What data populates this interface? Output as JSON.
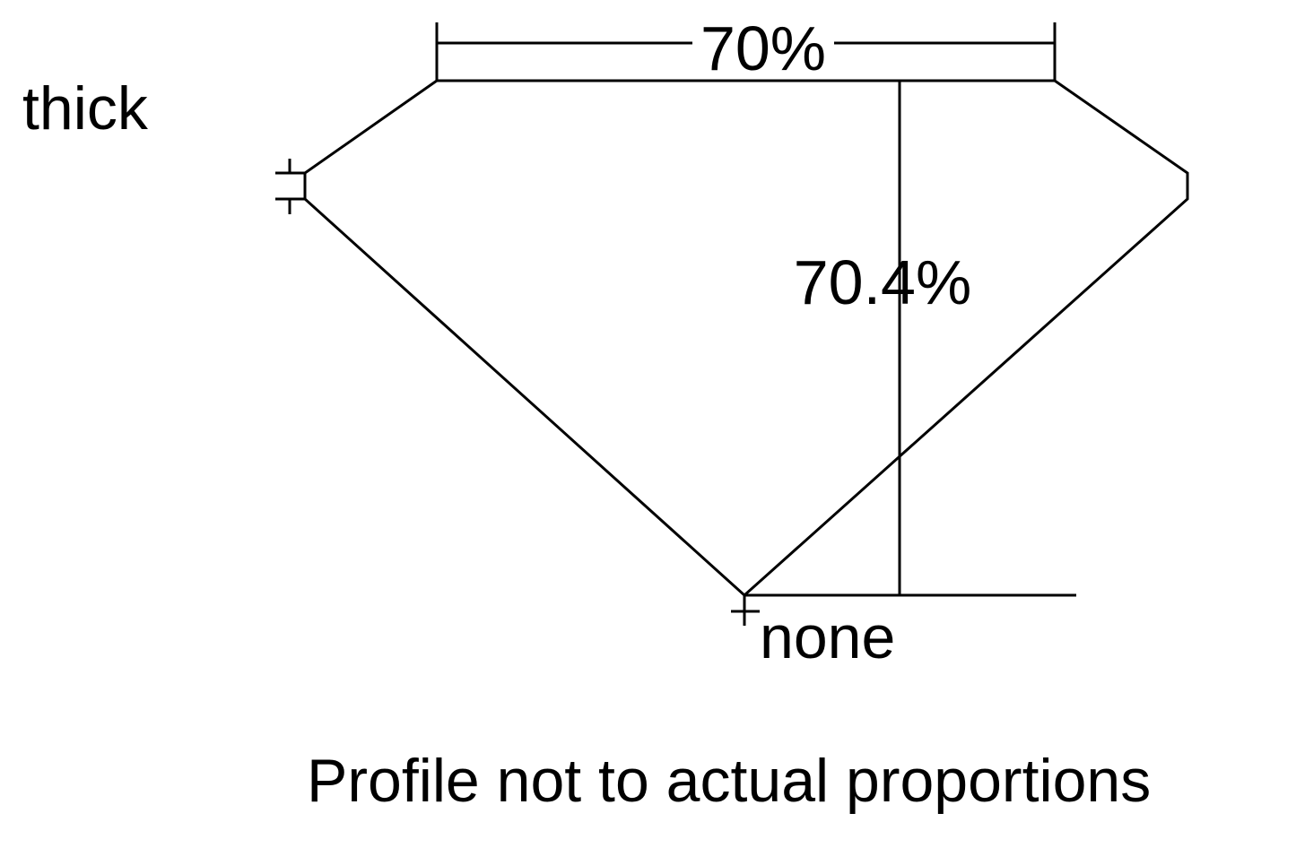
{
  "labels": {
    "girdle": "thick",
    "culet": "none",
    "table_percent": "70%",
    "depth_percent": "70.4%",
    "caption": "Profile not to actual proportions"
  },
  "values": {
    "table_percent": 70,
    "depth_percent": 70.4
  },
  "colors": {
    "line": "#000000",
    "background": "#ffffff"
  }
}
